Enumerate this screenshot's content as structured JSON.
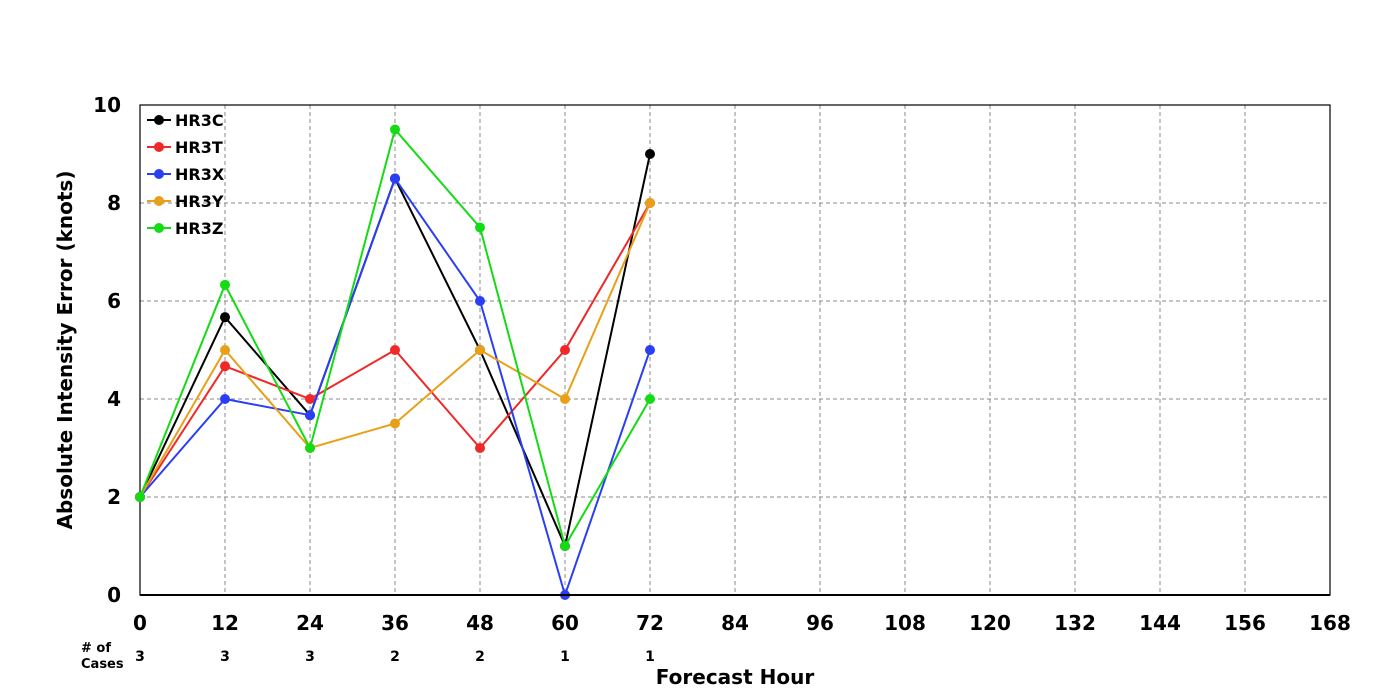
{
  "chart_data": {
    "type": "line",
    "xlabel": "Forecast Hour",
    "ylabel": "Absolute Intensity Error (knots)",
    "xlim": [
      0,
      168
    ],
    "ylim": [
      0,
      10
    ],
    "x_ticks": [
      0,
      12,
      24,
      36,
      48,
      60,
      72,
      84,
      96,
      108,
      120,
      132,
      144,
      156,
      168
    ],
    "y_ticks": [
      0,
      2,
      4,
      6,
      8,
      10
    ],
    "grid": true,
    "legend_position": "top-left",
    "x": [
      0,
      12,
      24,
      36,
      48,
      60,
      72
    ],
    "series": [
      {
        "name": "HR3C",
        "color": "#000000",
        "values": [
          2,
          5.67,
          3.67,
          8.5,
          5,
          1,
          9
        ]
      },
      {
        "name": "HR3T",
        "color": "#f02828",
        "values": [
          2,
          4.67,
          4,
          5,
          3,
          5,
          8
        ]
      },
      {
        "name": "HR3X",
        "color": "#2a3ff5",
        "values": [
          2,
          4,
          3.67,
          8.5,
          6,
          0,
          5
        ]
      },
      {
        "name": "HR3Y",
        "color": "#e8a018",
        "values": [
          2,
          5,
          3,
          3.5,
          5,
          4,
          8
        ]
      },
      {
        "name": "HR3Z",
        "color": "#14dc14",
        "values": [
          2,
          6.33,
          3,
          9.5,
          7.5,
          1,
          4
        ]
      }
    ],
    "cases": {
      "label_line1": "# of",
      "label_line2": "Cases",
      "hours": [
        0,
        12,
        24,
        36,
        48,
        60,
        72
      ],
      "counts": [
        "3",
        "3",
        "3",
        "2",
        "2",
        "1",
        "1"
      ]
    }
  }
}
